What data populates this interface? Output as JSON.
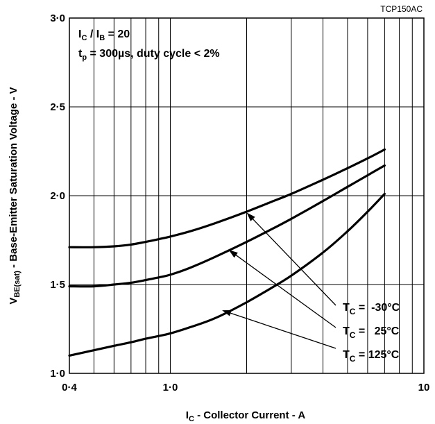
{
  "chart_data": {
    "type": "line",
    "figure_id": "TCP150AC",
    "xlabel": {
      "main": "I",
      "sub": "C",
      "rest": " - Collector Current - A"
    },
    "ylabel": {
      "main": "V",
      "sub": "BE(sat)",
      "rest": " - Base-Emitter Saturation Voltage - V"
    },
    "x_scale": "log",
    "xlim": [
      0.4,
      10
    ],
    "ylim": [
      1.0,
      3.0
    ],
    "x_ticks": [
      {
        "value": 0.4,
        "label": "0·4"
      },
      {
        "value": 1.0,
        "label": "1·0"
      },
      {
        "value": 10,
        "label": "10"
      }
    ],
    "y_ticks": [
      {
        "value": 1.0,
        "label": "1·0"
      },
      {
        "value": 1.5,
        "label": "1·5"
      },
      {
        "value": 2.0,
        "label": "2·0"
      },
      {
        "value": 2.5,
        "label": "2·5"
      },
      {
        "value": 3.0,
        "label": "3·0"
      }
    ],
    "grid": true,
    "conditions": {
      "line1": {
        "a": "I",
        "a_sub": "C",
        "mid": " / I",
        "b_sub": "B",
        "rest": " = 20"
      },
      "line2": {
        "a": "t",
        "a_sub": "p",
        "rest": " = 300µs, duty cycle < 2%"
      }
    },
    "series": [
      {
        "name": {
          "main": "T",
          "sub": "C",
          "rest": " =  -30°C"
        },
        "x": [
          0.4,
          0.5,
          0.6,
          0.7,
          0.8,
          0.9,
          1.0,
          1.2,
          1.5,
          2.0,
          2.5,
          3.0,
          4.0,
          5.0,
          6.0,
          7.0
        ],
        "y": [
          1.71,
          1.71,
          1.715,
          1.725,
          1.74,
          1.755,
          1.77,
          1.8,
          1.845,
          1.91,
          1.965,
          2.01,
          2.09,
          2.155,
          2.21,
          2.26
        ],
        "arrow_point": {
          "x": 2.0,
          "y": 1.905
        }
      },
      {
        "name": {
          "main": "T",
          "sub": "C",
          "rest": " =   25°C"
        },
        "x": [
          0.4,
          0.5,
          0.6,
          0.7,
          0.8,
          0.9,
          1.0,
          1.2,
          1.5,
          2.0,
          2.5,
          3.0,
          4.0,
          5.0,
          6.0,
          7.0
        ],
        "y": [
          1.49,
          1.49,
          1.5,
          1.51,
          1.525,
          1.54,
          1.555,
          1.595,
          1.655,
          1.74,
          1.81,
          1.87,
          1.97,
          2.05,
          2.115,
          2.17
        ],
        "arrow_point": {
          "x": 1.7,
          "y": 1.695
        }
      },
      {
        "name": {
          "main": "T",
          "sub": "C",
          "rest": " = 125°C"
        },
        "x": [
          0.4,
          0.5,
          0.6,
          0.7,
          0.8,
          0.9,
          1.0,
          1.2,
          1.5,
          2.0,
          2.5,
          3.0,
          4.0,
          5.0,
          6.0,
          7.0
        ],
        "y": [
          1.1,
          1.13,
          1.155,
          1.175,
          1.195,
          1.21,
          1.225,
          1.26,
          1.31,
          1.4,
          1.48,
          1.55,
          1.68,
          1.8,
          1.91,
          2.01
        ],
        "arrow_point": {
          "x": 1.6,
          "y": 1.355
        }
      }
    ]
  }
}
